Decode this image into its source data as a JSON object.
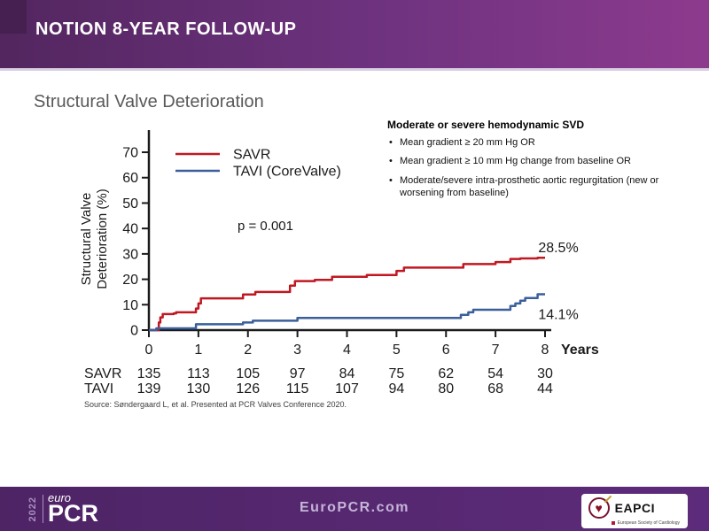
{
  "header": {
    "title": "NOTION 8-YEAR FOLLOW-UP"
  },
  "slide": {
    "title": "Structural Valve Deterioration",
    "source": "Source: Søndergaard L, et al. Presented at PCR Valves Conference 2020."
  },
  "info_box": {
    "title": "Moderate or severe hemodynamic SVD",
    "bullets": [
      "Mean gradient ≥ 20 mm Hg OR",
      "Mean gradient ≥ 10 mm Hg change from baseline OR",
      "Moderate/severe intra-prosthetic aortic regurgitation (new or worsening from baseline)"
    ]
  },
  "chart_data": {
    "type": "line",
    "subtype": "kaplan-meier-step",
    "title": "Structural Valve Deterioration",
    "ylabel_line1": "Structural Valve",
    "ylabel_line2": "Deterioration (%)",
    "xlabel": "Years",
    "xlim": [
      0,
      8
    ],
    "ylim": [
      0,
      70
    ],
    "yticks": [
      0,
      10,
      20,
      30,
      40,
      50,
      60,
      70
    ],
    "xticks": [
      0,
      1,
      2,
      3,
      4,
      5,
      6,
      7,
      8
    ],
    "grid": false,
    "legend_position": "upper-left-inside",
    "p_value_label": "p = 0.001",
    "axis_color": "#1a1a1a",
    "series": [
      {
        "name": "SAVR",
        "color": "#c01822",
        "final_label": "28.5%",
        "points": [
          [
            0,
            0
          ],
          [
            0.2,
            3
          ],
          [
            0.23,
            5
          ],
          [
            0.28,
            6.3
          ],
          [
            0.5,
            6.6
          ],
          [
            0.55,
            7
          ],
          [
            0.95,
            8.5
          ],
          [
            1.0,
            10.5
          ],
          [
            1.05,
            12.5
          ],
          [
            1.9,
            14
          ],
          [
            2.15,
            15
          ],
          [
            2.85,
            17.5
          ],
          [
            2.95,
            19.3
          ],
          [
            3.35,
            19.8
          ],
          [
            3.7,
            21
          ],
          [
            4.4,
            21.7
          ],
          [
            5.0,
            23.3
          ],
          [
            5.15,
            24.6
          ],
          [
            6.35,
            26
          ],
          [
            7.0,
            26.8
          ],
          [
            7.3,
            28
          ],
          [
            7.5,
            28.2
          ],
          [
            7.85,
            28.5
          ],
          [
            8,
            28.5
          ]
        ]
      },
      {
        "name": "TAVI (CoreValve)",
        "color": "#3b5f9b",
        "final_label": "14.1%",
        "points": [
          [
            0,
            0
          ],
          [
            0.15,
            0.7
          ],
          [
            0.95,
            2.3
          ],
          [
            1.9,
            3
          ],
          [
            2.1,
            3.7
          ],
          [
            3.0,
            4.8
          ],
          [
            6.3,
            6
          ],
          [
            6.45,
            7
          ],
          [
            6.55,
            8
          ],
          [
            7.3,
            9.5
          ],
          [
            7.4,
            10.5
          ],
          [
            7.5,
            11.6
          ],
          [
            7.6,
            12.6
          ],
          [
            7.85,
            14.1
          ],
          [
            8,
            14.1
          ]
        ]
      }
    ],
    "at_risk": {
      "rows": [
        {
          "label": "SAVR",
          "values": [
            135,
            113,
            105,
            97,
            84,
            75,
            62,
            54,
            30
          ]
        },
        {
          "label": "TAVI",
          "values": [
            139,
            130,
            126,
            115,
            107,
            94,
            80,
            68,
            44
          ]
        }
      ]
    }
  },
  "footer": {
    "logo_year": "2022",
    "logo_euro": "euro",
    "logo_pcr": "PCR",
    "url": "EuroPCR.com",
    "eapci": {
      "name": "EAPCI",
      "subtitle": "European Society of Cardiology"
    }
  }
}
